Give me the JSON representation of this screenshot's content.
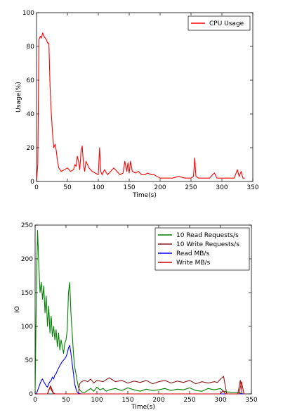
{
  "chart_data": [
    {
      "type": "line",
      "xlabel": "Time(s)",
      "ylabel": "Usage(%)",
      "xlim": [
        0,
        350
      ],
      "ylim": [
        0,
        100
      ],
      "xticks": [
        "0",
        "50",
        "100",
        "150",
        "200",
        "250",
        "300",
        "350"
      ],
      "yticks": [
        "0",
        "20",
        "40",
        "60",
        "80",
        "100"
      ],
      "legend_position": "top-right",
      "series": [
        {
          "name": "CPU Usage",
          "color": "#ff0000",
          "x": [
            0,
            2,
            4,
            6,
            8,
            10,
            12,
            14,
            16,
            18,
            20,
            22,
            24,
            26,
            28,
            30,
            32,
            34,
            36,
            38,
            40,
            45,
            50,
            55,
            60,
            62,
            64,
            66,
            68,
            70,
            72,
            74,
            76,
            78,
            80,
            85,
            90,
            95,
            100,
            102,
            104,
            106,
            110,
            115,
            120,
            125,
            130,
            135,
            140,
            143,
            146,
            148,
            150,
            152,
            155,
            160,
            165,
            170,
            175,
            180,
            185,
            190,
            195,
            200,
            210,
            220,
            230,
            240,
            250,
            254,
            256,
            258,
            262,
            270,
            280,
            285,
            288,
            292,
            300,
            310,
            320,
            325,
            328,
            331,
            334,
            337
          ],
          "y": [
            0,
            10,
            84,
            86,
            85,
            88,
            86,
            85,
            84,
            82,
            82,
            55,
            40,
            28,
            20,
            22,
            18,
            12,
            8,
            7,
            6,
            7,
            8,
            6,
            7,
            10,
            9,
            15,
            12,
            7,
            18,
            21,
            10,
            6,
            12,
            8,
            6,
            5,
            4,
            20,
            6,
            4,
            7,
            4,
            6,
            8,
            6,
            4,
            5,
            12,
            6,
            11,
            5,
            12,
            6,
            5,
            6,
            4,
            4,
            5,
            4,
            4,
            3,
            2,
            2,
            2,
            3,
            2,
            2,
            3,
            14,
            3,
            2,
            2,
            2,
            4,
            5,
            2,
            2,
            2,
            2,
            7,
            3,
            6,
            2,
            2
          ]
        }
      ]
    },
    {
      "type": "line",
      "xlabel": "Time(s)",
      "ylabel": "IO",
      "xlim": [
        0,
        350
      ],
      "ylim": [
        0,
        250
      ],
      "xticks": [
        "0",
        "50",
        "100",
        "150",
        "200",
        "250",
        "300",
        "350"
      ],
      "yticks": [
        "0",
        "50",
        "100",
        "150",
        "200",
        "250"
      ],
      "legend_position": "top-right",
      "series": [
        {
          "name": "10 Read Requests/s",
          "color": "#008000",
          "x": [
            0,
            2,
            4,
            6,
            8,
            10,
            12,
            14,
            16,
            18,
            20,
            22,
            24,
            26,
            28,
            30,
            32,
            34,
            36,
            38,
            40,
            42,
            44,
            46,
            48,
            50,
            52,
            54,
            56,
            58,
            60,
            62,
            64,
            66,
            68,
            70,
            72,
            75,
            80,
            85,
            90,
            95,
            100,
            105,
            110,
            115,
            120,
            130,
            140,
            150,
            160,
            170,
            180,
            190,
            200,
            210,
            220,
            230,
            240,
            250,
            260,
            270,
            280,
            290,
            300,
            305,
            310,
            320,
            330,
            335,
            340
          ],
          "x_note": "",
          "y": [
            0,
            150,
            242,
            190,
            150,
            165,
            140,
            160,
            120,
            145,
            100,
            130,
            90,
            115,
            85,
            100,
            80,
            95,
            70,
            90,
            65,
            80,
            70,
            60,
            75,
            80,
            95,
            150,
            165,
            120,
            90,
            60,
            40,
            30,
            20,
            10,
            6,
            3,
            2,
            5,
            8,
            4,
            10,
            6,
            8,
            4,
            6,
            8,
            5,
            9,
            6,
            4,
            7,
            5,
            6,
            8,
            5,
            7,
            6,
            9,
            5,
            4,
            8,
            6,
            8,
            4,
            3,
            2,
            2,
            0,
            0
          ]
        },
        {
          "name": "10 Write Requests/s",
          "color": "#8b1a1a",
          "x": [
            0,
            10,
            20,
            25,
            30,
            40,
            50,
            60,
            70,
            72,
            75,
            80,
            85,
            90,
            95,
            100,
            110,
            120,
            130,
            140,
            150,
            160,
            170,
            180,
            190,
            200,
            210,
            220,
            230,
            240,
            250,
            260,
            270,
            280,
            290,
            295,
            300,
            305,
            310,
            320,
            328,
            332,
            335,
            340
          ],
          "y": [
            0,
            0,
            0,
            12,
            0,
            0,
            0,
            0,
            0,
            15,
            18,
            20,
            18,
            22,
            16,
            20,
            18,
            24,
            18,
            20,
            16,
            19,
            17,
            20,
            15,
            18,
            20,
            16,
            19,
            17,
            20,
            15,
            18,
            16,
            18,
            17,
            22,
            26,
            0,
            0,
            0,
            20,
            0,
            0
          ]
        },
        {
          "name": "Read MB/s",
          "color": "#0000ff",
          "x": [
            0,
            2,
            4,
            6,
            8,
            10,
            12,
            14,
            16,
            18,
            20,
            22,
            24,
            26,
            28,
            30,
            32,
            34,
            36,
            38,
            40,
            42,
            44,
            46,
            48,
            50,
            52,
            54,
            56,
            58,
            60,
            62,
            64,
            66,
            68,
            70,
            75,
            80,
            90,
            100,
            150,
            200,
            250,
            300,
            340
          ],
          "y": [
            0,
            0,
            5,
            10,
            15,
            20,
            22,
            18,
            15,
            12,
            10,
            15,
            18,
            20,
            25,
            22,
            28,
            30,
            35,
            38,
            42,
            45,
            48,
            50,
            52,
            55,
            60,
            68,
            72,
            60,
            45,
            30,
            15,
            8,
            3,
            1,
            0,
            0,
            0,
            0,
            0,
            0,
            0,
            0,
            0
          ]
        },
        {
          "name": "Write MB/s",
          "color": "#cc0000",
          "x": [
            0,
            20,
            24,
            28,
            32,
            40,
            60,
            70,
            100,
            150,
            200,
            250,
            300,
            304,
            308,
            330,
            334,
            338,
            340
          ],
          "y": [
            0,
            0,
            10,
            3,
            0,
            0,
            0,
            0,
            0,
            0,
            0,
            0,
            0,
            5,
            0,
            0,
            18,
            0,
            0
          ]
        }
      ]
    }
  ]
}
